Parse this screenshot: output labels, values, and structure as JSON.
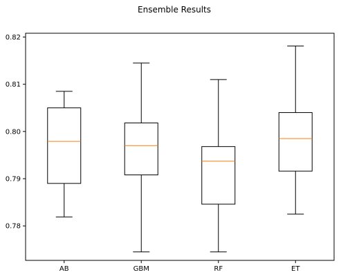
{
  "chart_data": {
    "type": "boxplot",
    "title": "Ensemble Results",
    "xlabel": "",
    "ylabel": "",
    "categories": [
      "AB",
      "GBM",
      "RF",
      "ET"
    ],
    "boxes": [
      {
        "name": "AB",
        "whisker_low": 0.7819,
        "q1": 0.789,
        "median": 0.7979,
        "q3": 0.805,
        "whisker_high": 0.8085
      },
      {
        "name": "GBM",
        "whisker_low": 0.7745,
        "q1": 0.7908,
        "median": 0.797,
        "q3": 0.8018,
        "whisker_high": 0.8145
      },
      {
        "name": "RF",
        "whisker_low": 0.7745,
        "q1": 0.7846,
        "median": 0.7937,
        "q3": 0.7968,
        "whisker_high": 0.811
      },
      {
        "name": "ET",
        "whisker_low": 0.7825,
        "q1": 0.7916,
        "median": 0.7985,
        "q3": 0.804,
        "whisker_high": 0.8181
      }
    ],
    "yticks": [
      0.78,
      0.79,
      0.8,
      0.81,
      0.82
    ],
    "ytick_labels": [
      "0.78",
      "0.79",
      "0.80",
      "0.81",
      "0.82"
    ],
    "ylim": [
      0.7727,
      0.8208
    ],
    "grid": false,
    "legend": "none",
    "colors": {
      "box": "#000000",
      "median": "#ff7f0e",
      "axes": "#000000",
      "background": "#ffffff"
    }
  }
}
